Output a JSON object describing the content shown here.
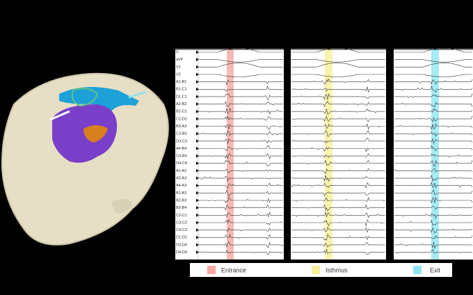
{
  "channels": [
    "II",
    "aVF",
    "V1",
    "V2",
    "A1-B1",
    "B1-C1",
    "D1-C1",
    "A2-B2",
    "B2-C2",
    "C2-D2",
    "B3-A3",
    "C3-B3",
    "D3-C3",
    "A4-B4",
    "C4-B4",
    "D4-C4",
    "A1-A2",
    "A2-A3",
    "A4-A3",
    "B1-B2",
    "B2-B3",
    "B3-B4",
    "C2-C1",
    "C3-C2",
    "C4-C3",
    "D1-D2",
    "D3-D4",
    "D4-D3"
  ],
  "legend": [
    "Entrance",
    "Isthmus",
    "Exit"
  ]
}
